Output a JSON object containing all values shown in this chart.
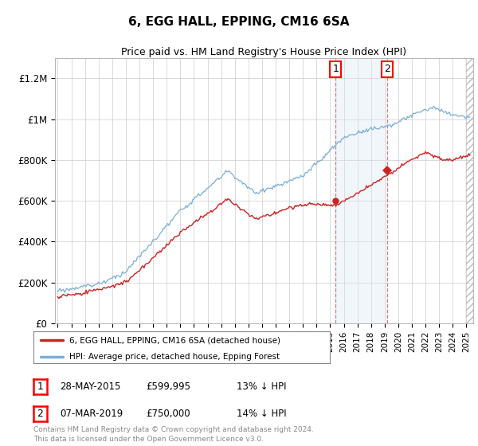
{
  "title": "6, EGG HALL, EPPING, CM16 6SA",
  "subtitle": "Price paid vs. HM Land Registry's House Price Index (HPI)",
  "ylabel_ticks": [
    "£0",
    "£200K",
    "£400K",
    "£600K",
    "£800K",
    "£1M",
    "£1.2M"
  ],
  "ytick_values": [
    0,
    200000,
    400000,
    600000,
    800000,
    1000000,
    1200000
  ],
  "ylim": [
    0,
    1300000
  ],
  "xlim_start": 1994.8,
  "xlim_end": 2025.5,
  "marker1_x": 2015.4,
  "marker2_x": 2019.17,
  "marker1_price": 599995,
  "marker2_price": 750000,
  "shaded_region_start": 2015.4,
  "shaded_region_end": 2019.17,
  "legend_entries": [
    "6, EGG HALL, EPPING, CM16 6SA (detached house)",
    "HPI: Average price, detached house, Epping Forest"
  ],
  "table_rows": [
    {
      "num": "1",
      "date": "28-MAY-2015",
      "price": "£599,995",
      "pct": "13% ↓ HPI"
    },
    {
      "num": "2",
      "date": "07-MAR-2019",
      "price": "£750,000",
      "pct": "14% ↓ HPI"
    }
  ],
  "footnote": "Contains HM Land Registry data © Crown copyright and database right 2024.\nThis data is licensed under the Open Government Licence v3.0.",
  "hpi_color": "#7aaed6",
  "price_color": "#cc2222",
  "background_color": "#ffffff",
  "plot_bg_color": "#ffffff",
  "grid_color": "#cccccc",
  "shaded_color": "#d8e8f5",
  "dashed_color": "#cc6666"
}
